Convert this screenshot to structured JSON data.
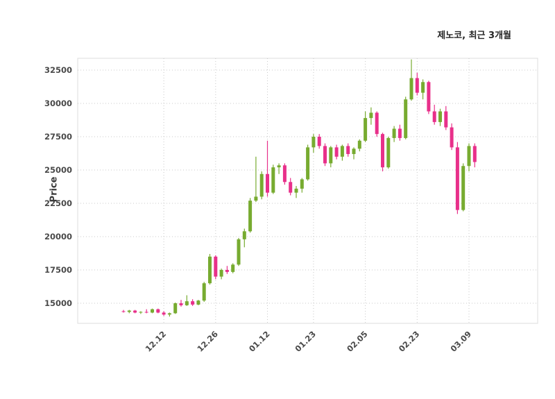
{
  "chart_data": {
    "type": "candlestick",
    "title": "제노코, 최근 3개월",
    "ylabel": "Price",
    "grid": true,
    "legend_position": "none",
    "colors": {
      "up": "#77ab30",
      "down": "#e8308a"
    },
    "y_axis": {
      "ticks": [
        15000,
        17500,
        20000,
        22500,
        25000,
        27500,
        30000,
        32500
      ],
      "range": [
        13490,
        33385
      ]
    },
    "x_axis": {
      "ticks": [
        {
          "index": 7,
          "label": "12.12"
        },
        {
          "index": 16,
          "label": "12.26"
        },
        {
          "index": 25,
          "label": "01.12"
        },
        {
          "index": 33,
          "label": "01.23"
        },
        {
          "index": 42,
          "label": "02.05"
        },
        {
          "index": 51,
          "label": "02.23"
        },
        {
          "index": 60,
          "label": "03.09"
        }
      ]
    },
    "candles": [
      [
        14400,
        14500,
        14300,
        14350
      ],
      [
        14350,
        14500,
        14250,
        14450
      ],
      [
        14450,
        14500,
        14250,
        14300
      ],
      [
        14300,
        14400,
        14200,
        14350
      ],
      [
        14350,
        14550,
        14250,
        14300
      ],
      [
        14300,
        14600,
        14250,
        14550
      ],
      [
        14550,
        14600,
        14250,
        14300
      ],
      [
        14300,
        14400,
        14050,
        14150
      ],
      [
        14150,
        14300,
        14000,
        14250
      ],
      [
        14250,
        15050,
        14200,
        15000
      ],
      [
        15000,
        15250,
        14750,
        14850
      ],
      [
        14850,
        15600,
        14800,
        15150
      ],
      [
        15150,
        15300,
        14800,
        14900
      ],
      [
        14900,
        15250,
        14850,
        15200
      ],
      [
        15200,
        16600,
        15100,
        16500
      ],
      [
        16500,
        18700,
        16400,
        18500
      ],
      [
        18500,
        18600,
        16800,
        17000
      ],
      [
        17000,
        17600,
        16800,
        17500
      ],
      [
        17500,
        17800,
        17200,
        17350
      ],
      [
        17350,
        18000,
        17250,
        17900
      ],
      [
        17900,
        19900,
        17800,
        19800
      ],
      [
        19800,
        20600,
        19200,
        20400
      ],
      [
        20400,
        22900,
        20300,
        22700
      ],
      [
        22700,
        26000,
        22600,
        23000
      ],
      [
        23000,
        24900,
        22800,
        24700
      ],
      [
        24700,
        27200,
        23000,
        23300
      ],
      [
        23300,
        25400,
        23200,
        25200
      ],
      [
        25200,
        25500,
        24700,
        25350
      ],
      [
        25350,
        25500,
        23900,
        24100
      ],
      [
        24100,
        24400,
        23100,
        23300
      ],
      [
        23300,
        23800,
        22900,
        23600
      ],
      [
        23600,
        24400,
        23300,
        24300
      ],
      [
        24300,
        26900,
        24200,
        26700
      ],
      [
        26700,
        27700,
        26300,
        27500
      ],
      [
        27500,
        27700,
        26600,
        26800
      ],
      [
        26800,
        27000,
        25300,
        25500
      ],
      [
        25500,
        26800,
        25200,
        26700
      ],
      [
        26700,
        26900,
        25800,
        26000
      ],
      [
        26000,
        26900,
        25700,
        26800
      ],
      [
        26800,
        27000,
        26000,
        26200
      ],
      [
        26200,
        26700,
        25800,
        26600
      ],
      [
        26600,
        27300,
        26400,
        27200
      ],
      [
        27200,
        29400,
        27100,
        28900
      ],
      [
        28900,
        29700,
        28400,
        29300
      ],
      [
        29300,
        29400,
        27500,
        27700
      ],
      [
        27700,
        27800,
        24900,
        25200
      ],
      [
        25200,
        27500,
        25100,
        27400
      ],
      [
        27400,
        28300,
        27100,
        28100
      ],
      [
        28100,
        28400,
        27200,
        27400
      ],
      [
        27400,
        30500,
        27300,
        30300
      ],
      [
        30300,
        33300,
        30200,
        31900
      ],
      [
        31900,
        32300,
        30600,
        30800
      ],
      [
        30800,
        31800,
        30300,
        31600
      ],
      [
        31600,
        31700,
        29200,
        29400
      ],
      [
        29400,
        29900,
        28400,
        28600
      ],
      [
        28600,
        29600,
        28300,
        29400
      ],
      [
        29400,
        29800,
        28000,
        28200
      ],
      [
        28200,
        28500,
        26500,
        26700
      ],
      [
        26700,
        27100,
        21700,
        22000
      ],
      [
        22000,
        25500,
        21900,
        25300
      ],
      [
        25300,
        27000,
        24900,
        26800
      ],
      [
        26800,
        27000,
        25200,
        25600
      ]
    ]
  }
}
